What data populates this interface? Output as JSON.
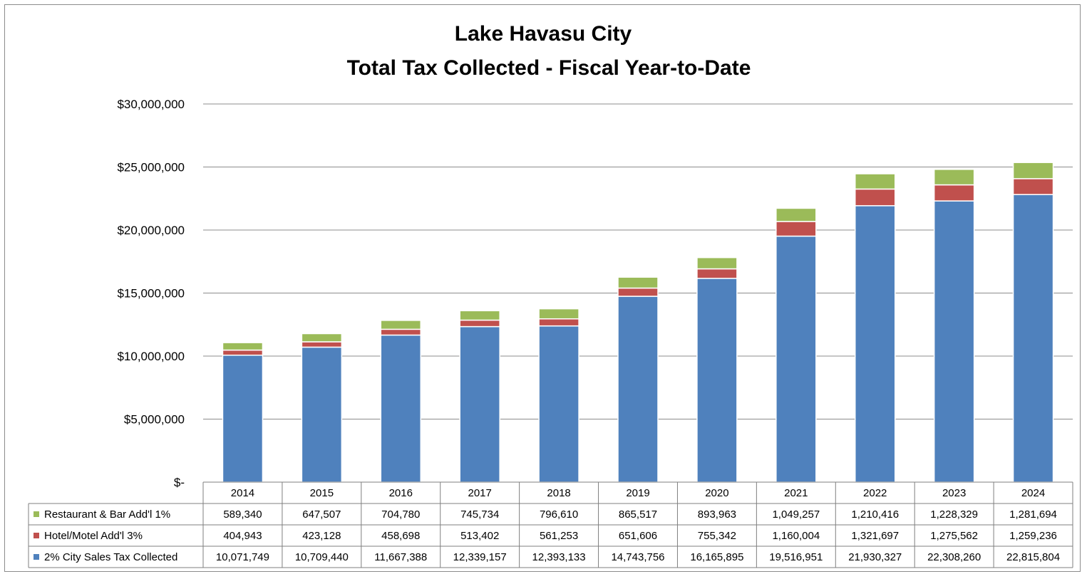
{
  "chart_data": {
    "type": "bar",
    "stacked": true,
    "title": "Lake Havasu City",
    "subtitle": "Total Tax Collected - Fiscal Year-to-Date",
    "categories": [
      "2014",
      "2015",
      "2016",
      "2017",
      "2018",
      "2019",
      "2020",
      "2021",
      "2022",
      "2023",
      "2024"
    ],
    "ylim": [
      0,
      30000000
    ],
    "y_ticks": [
      {
        "value": 0,
        "label": "$-"
      },
      {
        "value": 5000000,
        "label": "$5,000,000"
      },
      {
        "value": 10000000,
        "label": "$10,000,000"
      },
      {
        "value": 15000000,
        "label": "$15,000,000"
      },
      {
        "value": 20000000,
        "label": "$20,000,000"
      },
      {
        "value": 25000000,
        "label": "$25,000,000"
      },
      {
        "value": 30000000,
        "label": "$30,000,000"
      }
    ],
    "grid": true,
    "legend": "data-table",
    "series": [
      {
        "name": "2% City Sales Tax Collected",
        "color": "#4f81bd",
        "values": [
          10071749,
          10709440,
          11667388,
          12339157,
          12393133,
          14743756,
          16165895,
          19516951,
          21930327,
          22308260,
          22815804
        ],
        "labels": [
          "10,071,749",
          "10,709,440",
          "11,667,388",
          "12,339,157",
          "12,393,133",
          "14,743,756",
          "16,165,895",
          "19,516,951",
          "21,930,327",
          "22,308,260",
          "22,815,804"
        ]
      },
      {
        "name": "Hotel/Motel Add'l 3%",
        "color": "#c0504d",
        "values": [
          404943,
          423128,
          458698,
          513402,
          561253,
          651606,
          755342,
          1160004,
          1321697,
          1275562,
          1259236
        ],
        "labels": [
          "404,943",
          "423,128",
          "458,698",
          "513,402",
          "561,253",
          "651,606",
          "755,342",
          "1,160,004",
          "1,321,697",
          "1,275,562",
          "1,259,236"
        ]
      },
      {
        "name": "Restaurant & Bar Add'l 1%",
        "color": "#9bbb59",
        "values": [
          589340,
          647507,
          704780,
          745734,
          796610,
          865517,
          893963,
          1049257,
          1210416,
          1228329,
          1281694
        ],
        "labels": [
          "589,340",
          "647,507",
          "704,780",
          "745,734",
          "796,610",
          "865,517",
          "893,963",
          "1,049,257",
          "1,210,416",
          "1,228,329",
          "1,281,694"
        ]
      }
    ],
    "table_row_order": [
      2,
      1,
      0
    ]
  }
}
